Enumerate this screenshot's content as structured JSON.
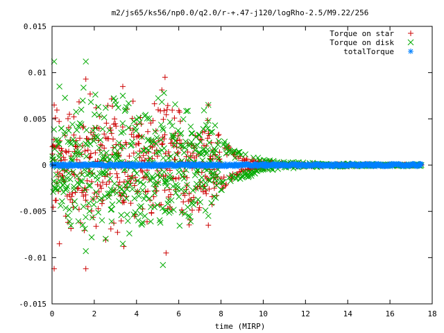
{
  "chart_data": {
    "type": "scatter",
    "title": "m2/js65/ks56/np0.0/q2.0/r-+.47-j120/logRho-2.5/M9.22/256",
    "xlabel": "time (MIRP)",
    "ylabel": "",
    "xlim": [
      0,
      18
    ],
    "ylim": [
      -0.015,
      0.015
    ],
    "x_ticks": [
      "0",
      "2",
      "4",
      "6",
      "8",
      "10",
      "12",
      "14",
      "16",
      "18"
    ],
    "y_ticks": [
      "0.015",
      "0.01",
      "0.005",
      "0",
      "-0.005",
      "-0.01",
      "-0.015"
    ],
    "x_tick_values": [
      0,
      2,
      4,
      6,
      8,
      10,
      12,
      14,
      16,
      18
    ],
    "y_tick_values": [
      0.015,
      0.01,
      0.005,
      0,
      -0.005,
      -0.01,
      -0.015
    ],
    "grid": false,
    "legend_position": "top-right",
    "series": [
      {
        "name": "Torque on star",
        "marker": "+",
        "color": "#cc0000",
        "envelope": [
          [
            0,
            0.0075
          ],
          [
            1.5,
            0.0095
          ],
          [
            3.3,
            0.0085
          ],
          [
            5.3,
            0.0085
          ],
          [
            7.4,
            0.0065
          ],
          [
            8,
            0.003
          ],
          [
            9,
            0.0008
          ],
          [
            10,
            0.0004
          ],
          [
            12,
            0.0002
          ],
          [
            14,
            0.00015
          ],
          [
            17.5,
            0.0001
          ]
        ],
        "x_range": [
          0,
          17.5
        ],
        "points": [
          [
            0.1,
            0.0065
          ],
          [
            0.1,
            -0.0112
          ],
          [
            0.35,
            -0.0085
          ],
          [
            1.6,
            0.0093
          ],
          [
            1.6,
            -0.0112
          ],
          [
            3.35,
            0.0085
          ],
          [
            3.4,
            -0.0088
          ],
          [
            5.35,
            0.0095
          ],
          [
            5.4,
            -0.0095
          ],
          [
            7.4,
            0.0065
          ],
          [
            7.4,
            -0.0065
          ]
        ]
      },
      {
        "name": "Torque on disk",
        "marker": "x",
        "color": "#00aa00",
        "envelope": [
          [
            0,
            0.0075
          ],
          [
            1.5,
            0.0095
          ],
          [
            3.3,
            0.0085
          ],
          [
            5.3,
            0.0085
          ],
          [
            7.4,
            0.0065
          ],
          [
            8,
            0.003
          ],
          [
            8.5,
            0.0018
          ],
          [
            9,
            0.0017
          ],
          [
            10,
            0.0006
          ],
          [
            12,
            0.0003
          ],
          [
            14,
            0.0002
          ],
          [
            17.5,
            0.00015
          ]
        ],
        "x_range": [
          0,
          17.5
        ],
        "points": [
          [
            0.1,
            0.0112
          ],
          [
            0.35,
            0.0085
          ],
          [
            1.6,
            0.0112
          ],
          [
            1.6,
            -0.0093
          ],
          [
            3.35,
            0.0075
          ],
          [
            3.35,
            -0.0085
          ],
          [
            5.3,
            0.0078
          ],
          [
            5.25,
            -0.0108
          ],
          [
            7.4,
            0.0065
          ],
          [
            7.4,
            -0.0055
          ]
        ]
      },
      {
        "name": "totalTorque",
        "marker": "*",
        "color": "#0080ff",
        "values_description": "approximately 0 across the whole time range",
        "x_range": [
          0,
          17.5
        ],
        "y_band": [
          -0.00015,
          0.00015
        ]
      }
    ]
  }
}
